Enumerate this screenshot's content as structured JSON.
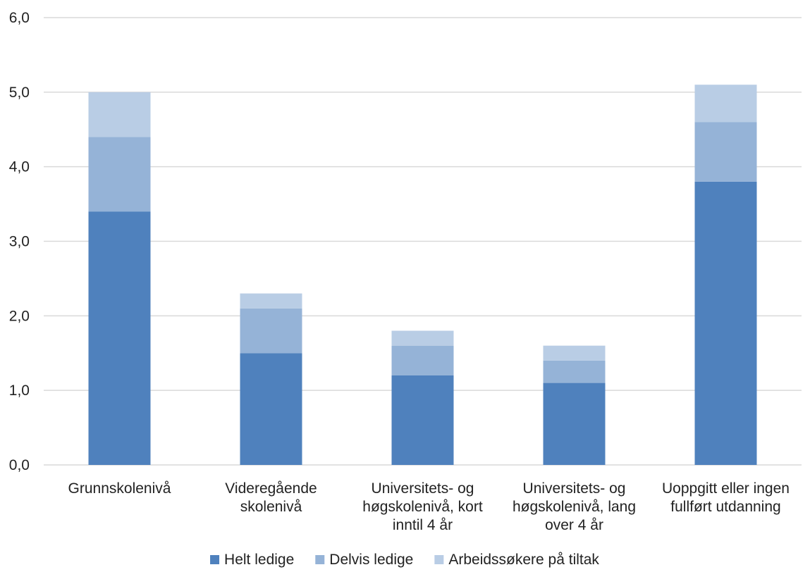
{
  "chart_data": {
    "type": "bar",
    "stacked": true,
    "title": "",
    "xlabel": "",
    "ylabel": "",
    "ylim": [
      0,
      6
    ],
    "ytick_labels": [
      "0,0",
      "1,0",
      "2,0",
      "3,0",
      "4,0",
      "5,0",
      "6,0"
    ],
    "ytick_values": [
      0,
      1,
      2,
      3,
      4,
      5,
      6
    ],
    "grid": "horizontal",
    "legend_position": "bottom",
    "categories": [
      [
        "Grunnskolenivå"
      ],
      [
        "Videregående",
        "skolenivå"
      ],
      [
        "Universitets- og",
        "høgskolenivå, kort",
        "inntil 4 år"
      ],
      [
        "Universitets- og",
        "høgskolenivå, lang",
        "over 4 år"
      ],
      [
        "Uoppgitt eller ingen",
        "fullført utdanning"
      ]
    ],
    "series": [
      {
        "name": "Helt ledige",
        "color": "#4f81bd",
        "values": [
          3.4,
          1.5,
          1.2,
          1.1,
          3.8
        ]
      },
      {
        "name": "Delvis ledige",
        "color": "#95b3d7",
        "values": [
          1.0,
          0.6,
          0.4,
          0.3,
          0.8
        ]
      },
      {
        "name": "Arbeidssøkere på tiltak",
        "color": "#b9cde5",
        "values": [
          0.6,
          0.2,
          0.2,
          0.2,
          0.5
        ]
      }
    ]
  }
}
